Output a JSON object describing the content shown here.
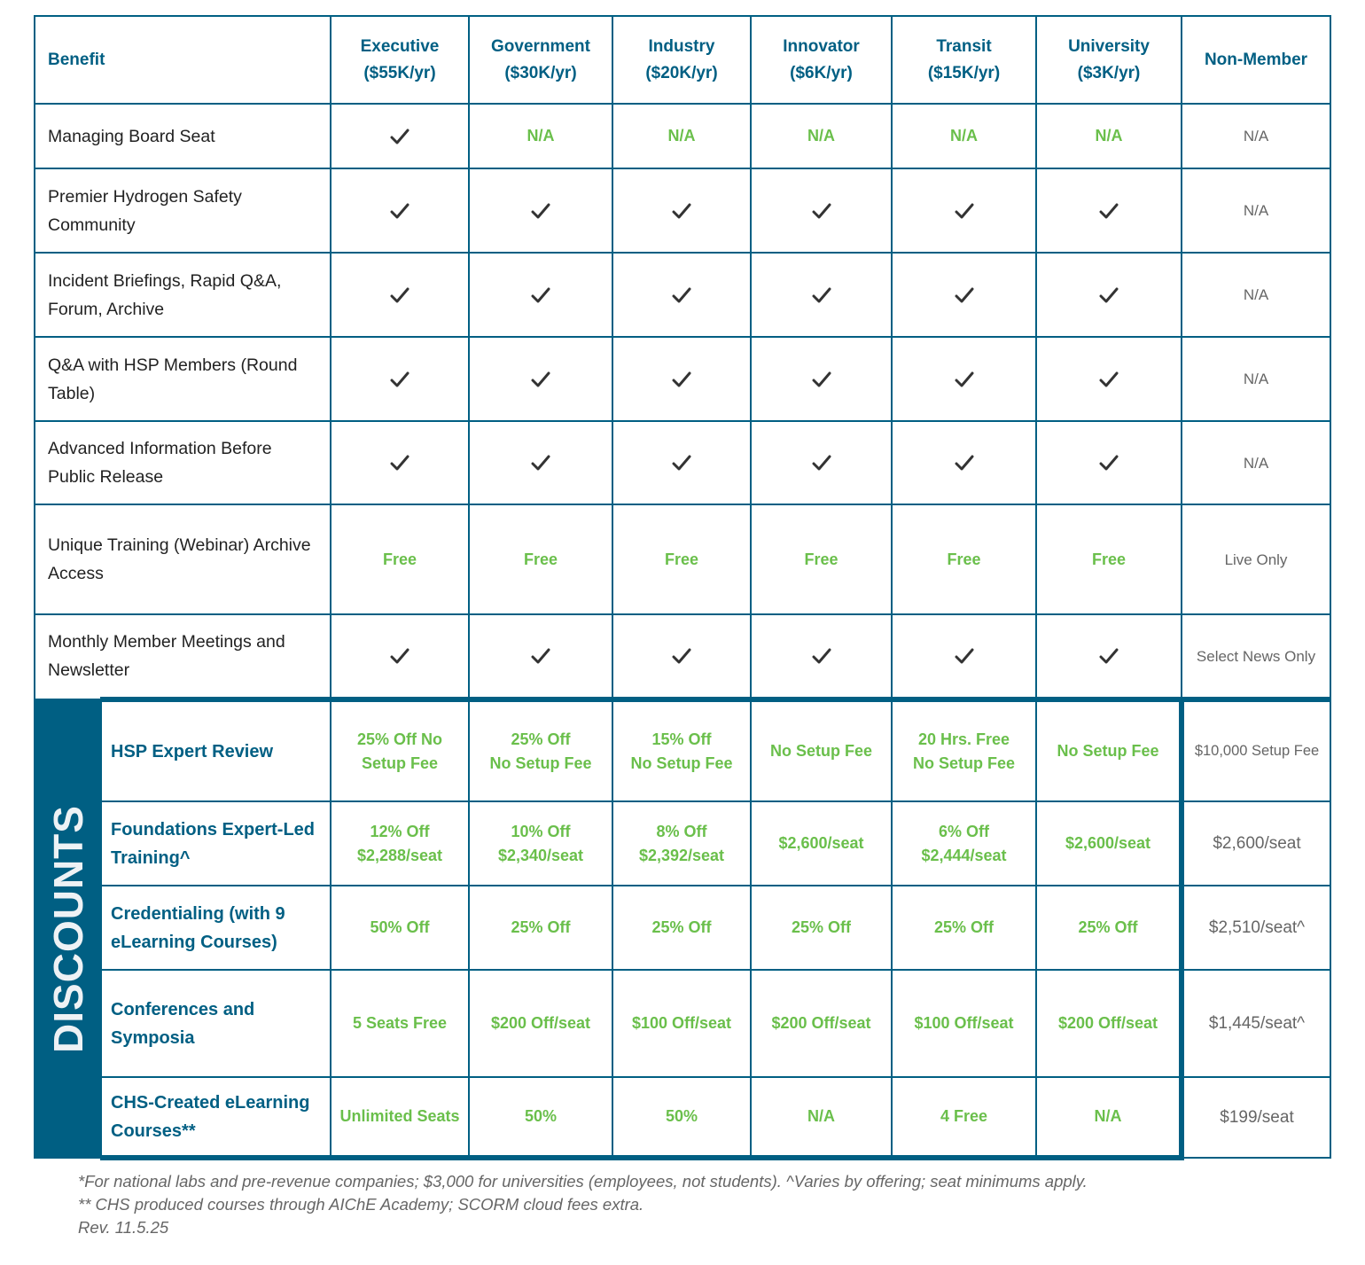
{
  "colors": {
    "brand": "#005f83",
    "accent": "#6abf4b",
    "muted": "#666666"
  },
  "header": {
    "benefit": "Benefit",
    "columns": [
      {
        "name": "Executive",
        "price": "($55K/yr)"
      },
      {
        "name": "Government",
        "price": "($30K/yr)"
      },
      {
        "name": "Industry",
        "price": "($20K/yr)"
      },
      {
        "name": "Innovator",
        "price": "($6K/yr)"
      },
      {
        "name": "Transit",
        "price": "($15K/yr)"
      },
      {
        "name": "University",
        "price": "($3K/yr)"
      },
      {
        "name": "Non-Member",
        "price": ""
      }
    ]
  },
  "benefits": [
    {
      "label": "Managing Board Seat",
      "values": [
        "check",
        "N/A",
        "N/A",
        "N/A",
        "N/A",
        "N/A"
      ],
      "non_member": "N/A"
    },
    {
      "label": "Premier Hydrogen Safety Community",
      "values": [
        "check",
        "check",
        "check",
        "check",
        "check",
        "check"
      ],
      "non_member": "N/A"
    },
    {
      "label": "Incident Briefings, Rapid Q&A, Forum, Archive",
      "values": [
        "check",
        "check",
        "check",
        "check",
        "check",
        "check"
      ],
      "non_member": "N/A"
    },
    {
      "label": "Q&A with HSP Members (Round Table)",
      "values": [
        "check",
        "check",
        "check",
        "check",
        "check",
        "check"
      ],
      "non_member": "N/A"
    },
    {
      "label": "Advanced Information Before Public Release",
      "values": [
        "check",
        "check",
        "check",
        "check",
        "check",
        "check"
      ],
      "non_member": "N/A"
    },
    {
      "label": "Unique Training (Webinar) Archive Access",
      "values": [
        "Free",
        "Free",
        "Free",
        "Free",
        "Free",
        "Free"
      ],
      "non_member": "Live Only"
    },
    {
      "label": "Monthly Member Meetings and Newsletter",
      "values": [
        "check",
        "check",
        "check",
        "check",
        "check",
        "check"
      ],
      "non_member": "Select News Only"
    }
  ],
  "discounts": {
    "title": "DISCOUNTS",
    "rows": [
      {
        "label": "HSP Expert Review",
        "values": [
          "25% Off No Setup Fee",
          "25% Off\nNo Setup Fee",
          "15% Off\nNo Setup Fee",
          "No Setup Fee",
          "20 Hrs. Free\nNo Setup Fee",
          "No Setup Fee"
        ],
        "non_member": "$10,000 Setup Fee"
      },
      {
        "label": "Foundations Expert-Led Training^",
        "values": [
          "12% Off\n$2,288/seat",
          "10% Off\n$2,340/seat",
          "8% Off\n$2,392/seat",
          "$2,600/seat",
          "6% Off\n$2,444/seat",
          "$2,600/seat"
        ],
        "non_member": "$2,600/seat"
      },
      {
        "label": "Credentialing (with 9 eLearning Courses)",
        "values": [
          "50% Off",
          "25% Off",
          "25% Off",
          "25% Off",
          "25% Off",
          "25% Off"
        ],
        "non_member": "$2,510/seat^"
      },
      {
        "label": "Conferences and Symposia",
        "values": [
          "5 Seats Free",
          "$200 Off/seat",
          "$100 Off/seat",
          "$200 Off/seat",
          "$100 Off/seat",
          "$200 Off/seat"
        ],
        "non_member": "$1,445/seat^"
      },
      {
        "label": "CHS-Created eLearning Courses**",
        "values": [
          "Unlimited Seats",
          "50%",
          "50%",
          "N/A",
          "4 Free",
          "N/A"
        ],
        "non_member": "$199/seat"
      }
    ]
  },
  "footnotes": [
    "*For national labs and pre-revenue companies; $3,000 for universities (employees, not students). ^Varies by offering; seat minimums apply.",
    "** CHS produced courses through AIChE Academy; SCORM cloud fees extra.",
    "Rev. 11.5.25"
  ]
}
